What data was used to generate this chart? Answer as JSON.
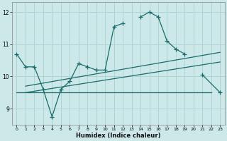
{
  "xlabel": "Humidex (Indice chaleur)",
  "bg_color": "#cce8e8",
  "grid_color": "#aed4d4",
  "line_color": "#1a6b6b",
  "xlim": [
    -0.5,
    23.5
  ],
  "ylim": [
    8.5,
    12.3
  ],
  "xticks": [
    0,
    1,
    2,
    3,
    4,
    5,
    6,
    7,
    8,
    9,
    10,
    11,
    12,
    13,
    14,
    15,
    16,
    17,
    18,
    19,
    20,
    21,
    22,
    23
  ],
  "yticks": [
    9,
    10,
    11,
    12
  ],
  "series1_segments": [
    {
      "x": [
        0,
        1,
        2,
        3,
        4,
        5,
        6,
        7,
        8,
        9,
        10,
        11,
        12
      ],
      "y": [
        10.7,
        10.3,
        10.3,
        9.6,
        8.75,
        9.6,
        9.85,
        10.4,
        10.3,
        10.2,
        10.2,
        11.55,
        11.65
      ]
    },
    {
      "x": [
        14,
        15,
        16,
        17,
        18,
        19
      ],
      "y": [
        11.85,
        12.0,
        11.85,
        11.1,
        10.85,
        10.7
      ]
    },
    {
      "x": [
        21,
        23
      ],
      "y": [
        10.05,
        9.5
      ]
    }
  ],
  "series2_x": [
    0,
    9,
    22
  ],
  "series2_y": [
    9.5,
    9.5,
    9.5
  ],
  "series3_x": [
    1,
    23
  ],
  "series3_y": [
    9.5,
    10.45
  ],
  "series4_x": [
    1,
    23
  ],
  "series4_y": [
    9.7,
    10.75
  ]
}
